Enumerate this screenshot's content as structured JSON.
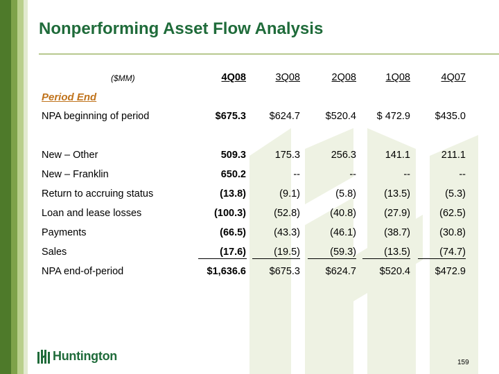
{
  "title": "Nonperforming Asset Flow Analysis",
  "units": "($MM)",
  "columns": [
    "4Q08",
    "3Q08",
    "2Q08",
    "1Q08",
    "4Q07"
  ],
  "section": "Period End",
  "rows": [
    {
      "label": "NPA beginning of period",
      "values": [
        "$675.3",
        "$624.7",
        "$520.4",
        "$ 472.9",
        "$435.0"
      ]
    },
    {
      "label": "New – Other",
      "values": [
        "509.3",
        "175.3",
        "256.3",
        "141.1",
        "211.1"
      ]
    },
    {
      "label": "New – Franklin",
      "values": [
        "650.2",
        "--",
        "--",
        "--",
        "--"
      ]
    },
    {
      "label": "Return to accruing status",
      "values": [
        "(13.8)",
        "(9.1)",
        "(5.8)",
        "(13.5)",
        "(5.3)"
      ]
    },
    {
      "label": "Loan and lease losses",
      "values": [
        "(100.3)",
        "(52.8)",
        "(40.8)",
        "(27.9)",
        "(62.5)"
      ]
    },
    {
      "label": "Payments",
      "values": [
        "(66.5)",
        "(43.3)",
        "(46.1)",
        "(38.7)",
        "(30.8)"
      ]
    },
    {
      "label": "Sales",
      "values": [
        "(17.6)",
        "(19.5)",
        "(59.3)",
        "(13.5)",
        "(74.7)"
      ]
    },
    {
      "label": "NPA end-of-period",
      "values": [
        "$1,636.6",
        "$675.3",
        "$624.7",
        "$520.4",
        "$472.9"
      ]
    }
  ],
  "logo_text": "Huntington",
  "page_number": "159",
  "colors": {
    "brand_green": "#1f6b3a",
    "accent_orange": "#c0731c",
    "watermark": "#eef2e3"
  }
}
